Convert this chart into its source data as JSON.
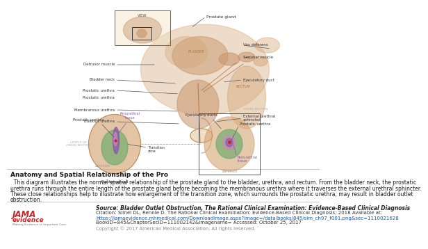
{
  "bg_white": "#ffffff",
  "medium_gray": "#bbbbbb",
  "light_gray": "#dddddd",
  "dark_text": "#1a1a1a",
  "gray_text": "#555555",
  "tan1": "#d4a574",
  "tan2": "#c8956b",
  "tan3": "#b07848",
  "tan_light": "#e8c9a0",
  "tan_pale": "#f0dfc0",
  "green_zone": "#6aaa6a",
  "purple_tissue": "#8855aa",
  "pink_tissue": "#cc88bb",
  "red_dot": "#cc2222",
  "title": "Anatomy and Spatial Relationship of the Pro",
  "title_fontsize": 6.5,
  "body_line1": "  This diagram illustrates the normal spatial relationship of the prostate gland to the bladder, urethra, and rectum. From the bladder neck, the prostatic",
  "body_line2": "urethra runs through the entire length of the prostate gland before becoming the membranous urethra where it traverses the external urethral sphincter.",
  "body_line3": "These close relationships help to illustrate how enlargement of the transition zone, which surrounds the prostatic urethra, may result in bladder outlet",
  "body_line4": "obstruction.",
  "body_fontsize": 5.5,
  "source_title": "Source: Bladder Outlet Obstruction, The Rational Clinical Examination: Evidence-Based Clinical Diagnosis",
  "citation_line1": "Citation: Simel DL, Rennie D. The Rational Clinical Examination: Evidence-Based Clinical Diagnosis; 2018 Available at:",
  "citation_line2": "https://jamaevidence.mhmedical.com/Downloadimage.aspx?image=/data/books/845/sim_ch97_f001.png&sec=1110021628",
  "citation_line3": "BookID=845&ChapterSecID=111002142&imagename= Accessed: October 25, 2017",
  "copyright_text": "Copyright © 2017 American Medical Association. All rights reserved.",
  "source_fontsize": 5.5,
  "citation_fontsize": 5.0,
  "copyright_fontsize": 4.8,
  "jama_sub_text": "Making Evidence to Important Care"
}
